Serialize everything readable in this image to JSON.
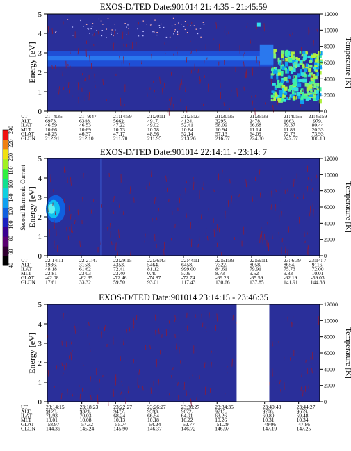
{
  "colors": {
    "background_field": "#2a2f9a",
    "band_color": "#1f4fd6",
    "noise_color": "#8a1b3a",
    "hot_color": "#7cf07a",
    "frame": "#000000"
  },
  "colorbar": {
    "label": "Second Harmonic Current",
    "ticks": [
      "40",
      "60",
      "80",
      "100",
      "120",
      "140",
      "160",
      "180",
      "200",
      "220",
      "240"
    ],
    "colors": [
      "#000000",
      "#300030",
      "#5a0070",
      "#3a0090",
      "#1a20c0",
      "#1060e0",
      "#10a0f0",
      "#10d0e0",
      "#10e090",
      "#30f040",
      "#a0f020",
      "#f0e010",
      "#f08010",
      "#f01010"
    ]
  },
  "chart_data": [
    {
      "type": "heatmap",
      "title": "EXOS-D/TED Date:901014 21: 4:35 - 21:45:59",
      "ylabel": "Energy [eV]",
      "y2label": "Temperature [K]",
      "ylim": [
        0,
        5
      ],
      "y_ticks": [
        "0",
        "1",
        "2",
        "3",
        "4",
        "5"
      ],
      "y2lim": [
        0,
        12000
      ],
      "y2_ticks": [
        "0",
        "2000",
        "4000",
        "6000",
        "8000",
        "10000",
        "12000"
      ],
      "row_labels": [
        "UT",
        "ALT",
        "ILAT",
        "MLT",
        "GLAT",
        "GLON"
      ],
      "columns": [
        [
          "21: 4:35",
          "6973.",
          "46.59",
          "10.66",
          "48.25",
          "212.91"
        ],
        [
          "21: 9:47",
          "6348.",
          "46.53",
          "10.69",
          "46.37",
          "212.10"
        ],
        [
          "21:14:59",
          "5662.",
          "47.22",
          "10.73",
          "47.17",
          "211.70"
        ],
        [
          "21:20:11",
          "4917.",
          "49.02",
          "10.78",
          "48.96",
          "211.95"
        ],
        [
          "21:25:23",
          "4124.",
          "52.41",
          "10.84",
          "52.14",
          "213.26"
        ],
        [
          "21:30:35",
          "3295.",
          "58.09",
          "10.94",
          "57.13",
          "216.57"
        ],
        [
          "21:35:39",
          "2478.",
          "66.68",
          "11.14",
          "64.09",
          "224.30"
        ],
        [
          "21:40:55",
          "1663.",
          "79.37",
          "11.89",
          "72.73",
          "247.57"
        ],
        [
          "21:45:59",
          "979.",
          "80.44",
          "20.33",
          "73.93",
          "306.13"
        ]
      ]
    },
    {
      "type": "heatmap",
      "title": "EXOS-D/TED Date:901014 22:14:11 - 23:14: 7",
      "ylabel": "Energy [eV]",
      "y2label": "Temperature [K]",
      "ylim": [
        0,
        5
      ],
      "y_ticks": [
        "0",
        "1",
        "2",
        "3",
        "4",
        "5"
      ],
      "y2lim": [
        0,
        12000
      ],
      "y2_ticks": [
        "0",
        "2000",
        "4000",
        "6000",
        "8000",
        "10000",
        "12000"
      ],
      "row_labels": [
        "UT",
        "ALT",
        "ILAT",
        "MLT",
        "GLAT",
        "GLON"
      ],
      "columns": [
        [
          "22:14:11",
          "1936.",
          "48.18",
          "22.81",
          "-42.08",
          "17.61"
        ],
        [
          "22:21:47",
          "3158.",
          "61.62",
          "23.03",
          "-62.35",
          "33.32"
        ],
        [
          "22:29:15",
          "4353.",
          "72.41",
          "23.40",
          "-72.46",
          "59.50"
        ],
        [
          "22:36:43",
          "5464.",
          "81.12",
          "0.40",
          "-74.87",
          "93.01"
        ],
        [
          "22:44:11",
          "6458.",
          "999.00",
          "5.09",
          "-72.74",
          "117.43"
        ],
        [
          "22:51:39",
          "7322.",
          "84.61",
          "8.73",
          "-69.23",
          "130.66"
        ],
        [
          "22:59:11",
          "8058.",
          "79.91",
          "9.52",
          "-65.59",
          "137.85"
        ],
        [
          "23: 6:39",
          "8654.",
          "75.73",
          "9.83",
          "-62.19",
          "141.91"
        ],
        [
          "23:14: 7",
          "9116.",
          "72.00",
          "10.01",
          "-59.03",
          "144.33"
        ]
      ]
    },
    {
      "type": "heatmap",
      "title": "EXOS-D/TED Date:901014 23:14:15 - 23:46:35",
      "ylabel": "Energy [eV]",
      "y2label": "Temperature [K]",
      "ylim": [
        0,
        5
      ],
      "y_ticks": [
        "0",
        "1",
        "2",
        "3",
        "4",
        "5"
      ],
      "y2lim": [
        0,
        12000
      ],
      "y2_ticks": [
        "0",
        "2000",
        "4000",
        "6000",
        "8000",
        "10000",
        "12000"
      ],
      "row_labels": [
        "UT",
        "ALT",
        "ILAT",
        "MLT",
        "GLAT",
        "GLON"
      ],
      "columns": [
        [
          "23:14:15",
          "9123.",
          "71.93",
          "10.01",
          "-58.97",
          "144.36"
        ],
        [
          "23:18:23",
          "9321.",
          "70.03",
          "10.08",
          "-57.32",
          "145.24"
        ],
        [
          "23:22:27",
          "9477.",
          "68.24",
          "10.13",
          "-55.74",
          "145.90"
        ],
        [
          "23:26:27",
          "9593.",
          "66.54",
          "10.18",
          "-54.24",
          "146.37"
        ],
        [
          "23:30:27",
          "9672.",
          "64.91",
          "10.22",
          "-52.77",
          "146.72"
        ],
        [
          "23:34:35",
          "9715.",
          "63.26",
          "10.26",
          "-51.29",
          "146.97"
        ],
        [
          "23:40:43",
          "9706.",
          "60.89",
          "10.31",
          "-49.06",
          "147.19"
        ],
        [
          "23:44:27",
          "9659.",
          "59.48",
          "10.34",
          "-47.86",
          "147.25"
        ]
      ],
      "data_gap": [
        "23:34:35",
        "23:40:43"
      ]
    }
  ]
}
